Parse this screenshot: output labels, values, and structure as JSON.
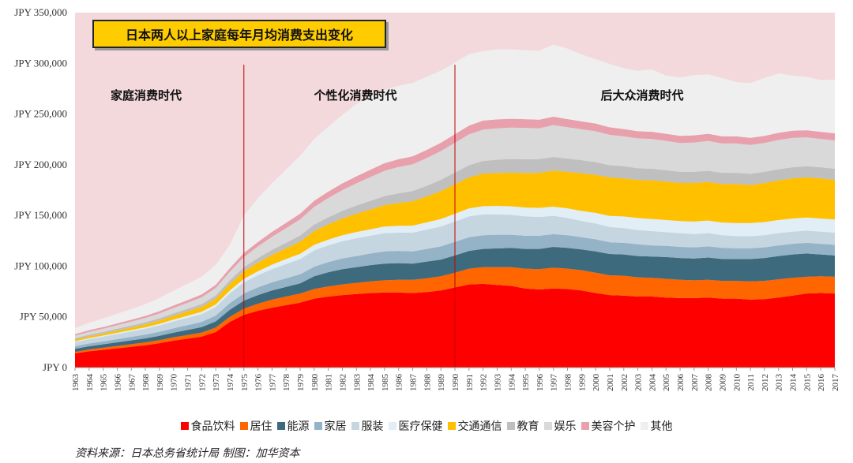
{
  "chart_data": {
    "type": "area",
    "stacked": true,
    "title": "日本两人以上家庭每年月均消费支出变化",
    "xlabel": "",
    "ylabel": "",
    "ylim": [
      0,
      350000
    ],
    "ytick_values": [
      0,
      50000,
      100000,
      150000,
      200000,
      250000,
      300000,
      350000
    ],
    "ytick_labels": [
      "JPY 0",
      "JPY 50,000",
      "JPY 100,000",
      "JPY 150,000",
      "JPY 200,000",
      "JPY 250,000",
      "JPY 300,000",
      "JPY 350,000"
    ],
    "x": [
      "1963",
      "1964",
      "1965",
      "1966",
      "1967",
      "1968",
      "1969",
      "1970",
      "1971",
      "1972",
      "1973",
      "1974",
      "1975",
      "1976",
      "1977",
      "1978",
      "1979",
      "1980",
      "1981",
      "1982",
      "1983",
      "1984",
      "1985",
      "1986",
      "1987",
      "1988",
      "1989",
      "1990",
      "1991",
      "1992",
      "1993",
      "1994",
      "1995",
      "1996",
      "1997",
      "1998",
      "1999",
      "2000",
      "2001",
      "2002",
      "2003",
      "2004",
      "2005",
      "2006",
      "2007",
      "2008",
      "2009",
      "2010",
      "2011",
      "2012",
      "2013",
      "2014",
      "2015",
      "2016",
      "2017"
    ],
    "series": [
      {
        "name": "食品饮料",
        "color": "#ff0000",
        "values": [
          14000,
          16000,
          17500,
          19000,
          20500,
          22000,
          24000,
          26500,
          28500,
          30500,
          35000,
          45000,
          52000,
          56000,
          59000,
          61500,
          64000,
          68000,
          70000,
          71500,
          72500,
          73500,
          74000,
          74000,
          73500,
          74500,
          76000,
          79000,
          82000,
          82500,
          81500,
          80500,
          78000,
          77000,
          78000,
          77500,
          76000,
          73500,
          71500,
          71000,
          70000,
          70000,
          69000,
          68500,
          68500,
          69000,
          68000,
          68000,
          67000,
          67500,
          69000,
          71000,
          73000,
          73500,
          73000
        ]
      },
      {
        "name": "居住",
        "color": "#ff6600",
        "values": [
          1500,
          1800,
          2000,
          2300,
          2500,
          2800,
          3000,
          3300,
          3600,
          4000,
          4500,
          5000,
          6000,
          7000,
          8000,
          8500,
          9000,
          9500,
          10000,
          10500,
          11000,
          11500,
          12000,
          12500,
          13000,
          13500,
          14000,
          14500,
          15500,
          16500,
          17500,
          18500,
          19500,
          20000,
          20500,
          20000,
          20000,
          20000,
          19500,
          19500,
          19000,
          18500,
          18500,
          18000,
          17500,
          17500,
          17500,
          17500,
          18000,
          18000,
          18000,
          17500,
          16500,
          16500,
          16500
        ]
      },
      {
        "name": "能源",
        "color": "#3d6b7d",
        "values": [
          3000,
          3200,
          3400,
          3600,
          3800,
          4000,
          4300,
          4600,
          5000,
          5400,
          6000,
          7000,
          8000,
          8500,
          9000,
          9500,
          10000,
          12500,
          14000,
          15000,
          15500,
          16000,
          16500,
          16500,
          16000,
          16500,
          16500,
          17000,
          17500,
          18000,
          18500,
          19000,
          19500,
          20000,
          20500,
          20500,
          20500,
          21000,
          21000,
          21000,
          21000,
          21000,
          21500,
          21500,
          21500,
          22000,
          21500,
          21500,
          22000,
          22500,
          23000,
          23000,
          23000,
          21500,
          21000
        ]
      },
      {
        "name": "家居",
        "color": "#95b3c7",
        "values": [
          2500,
          2700,
          2900,
          3100,
          3400,
          3700,
          4000,
          4300,
          4700,
          5100,
          5700,
          6500,
          7000,
          7500,
          8000,
          8500,
          9000,
          9500,
          10000,
          10500,
          11000,
          11500,
          12000,
          12000,
          12000,
          12500,
          13000,
          13500,
          13500,
          13500,
          13500,
          13000,
          13000,
          13000,
          12500,
          12500,
          12000,
          12000,
          11500,
          11500,
          11500,
          11000,
          11000,
          11000,
          11000,
          11000,
          11000,
          10500,
          10500,
          10500,
          10500,
          10500,
          10500,
          10500,
          10500
        ]
      },
      {
        "name": "服装",
        "color": "#c5d6e0",
        "values": [
          4000,
          4300,
          4600,
          5000,
          5400,
          5800,
          6200,
          6700,
          7200,
          7700,
          8500,
          9500,
          11000,
          12000,
          13000,
          14000,
          15000,
          16000,
          16500,
          17000,
          17500,
          17500,
          18000,
          18000,
          18500,
          19000,
          19500,
          20000,
          20500,
          20500,
          20000,
          19500,
          19000,
          18500,
          18000,
          17000,
          16000,
          15500,
          15000,
          14500,
          14000,
          14000,
          13500,
          13500,
          13000,
          13000,
          12500,
          12000,
          12000,
          12000,
          12000,
          12000,
          12000,
          12000,
          12000
        ]
      },
      {
        "name": "医疗保健",
        "color": "#e1eef5",
        "values": [
          1000,
          1100,
          1200,
          1300,
          1400,
          1500,
          1700,
          1900,
          2100,
          2300,
          2600,
          3000,
          3500,
          4000,
          4500,
          5000,
          5200,
          5500,
          5700,
          6000,
          6200,
          6400,
          6600,
          6800,
          7000,
          7200,
          7500,
          7700,
          8000,
          8200,
          8400,
          8600,
          8800,
          9000,
          9200,
          9500,
          10000,
          10500,
          11000,
          11500,
          12000,
          12000,
          12000,
          12000,
          12500,
          12500,
          12500,
          13000,
          13000,
          13000,
          13000,
          13000,
          13000,
          13000,
          13000
        ]
      },
      {
        "name": "交通通信",
        "color": "#ffc000",
        "values": [
          1500,
          1700,
          1900,
          2200,
          2500,
          2800,
          3200,
          3700,
          4200,
          4800,
          5600,
          6500,
          7500,
          8500,
          9500,
          10500,
          12000,
          13500,
          15000,
          16500,
          18000,
          19500,
          21000,
          22500,
          24000,
          25500,
          27500,
          29000,
          30500,
          32000,
          32500,
          33000,
          34000,
          34500,
          35500,
          36000,
          37000,
          37500,
          38000,
          37500,
          37500,
          38000,
          38000,
          37500,
          38000,
          38000,
          38000,
          38500,
          37500,
          38500,
          39000,
          39500,
          39500,
          39500,
          39000
        ]
      },
      {
        "name": "教育",
        "color": "#bfbfbf",
        "values": [
          1500,
          1600,
          1700,
          1800,
          1900,
          2000,
          2200,
          2400,
          2600,
          2800,
          3100,
          3500,
          4000,
          4500,
          5000,
          5500,
          6000,
          6500,
          7000,
          7500,
          8000,
          8500,
          9000,
          9500,
          10000,
          10500,
          11000,
          11500,
          12000,
          12500,
          13000,
          13500,
          13500,
          13500,
          13500,
          13000,
          13000,
          12500,
          12000,
          12000,
          11500,
          11500,
          11000,
          11000,
          11000,
          11000,
          11000,
          11000,
          11000,
          11000,
          11000,
          11000,
          11000,
          11000,
          11000
        ]
      },
      {
        "name": "娱乐",
        "color": "#d9d9d9",
        "values": [
          2500,
          2800,
          3100,
          3500,
          3900,
          4300,
          4800,
          5400,
          6000,
          6700,
          7500,
          8500,
          10000,
          11500,
          13000,
          14500,
          16000,
          17500,
          19000,
          20500,
          22000,
          23500,
          25000,
          26000,
          26500,
          27500,
          28500,
          29500,
          30500,
          31000,
          31000,
          31000,
          31000,
          30500,
          31500,
          31000,
          30500,
          30500,
          30000,
          29500,
          29500,
          29500,
          29000,
          28500,
          29000,
          29500,
          29000,
          29000,
          28500,
          28500,
          29000,
          29000,
          28500,
          28000,
          28000
        ]
      },
      {
        "name": "美容个护",
        "color": "#e8a0ad",
        "values": [
          1500,
          1600,
          1700,
          1800,
          1900,
          2000,
          2200,
          2400,
          2600,
          2800,
          3100,
          3500,
          4000,
          4400,
          4800,
          5200,
          5600,
          6000,
          6300,
          6600,
          6900,
          7200,
          7400,
          7600,
          7800,
          8000,
          8200,
          8400,
          8600,
          8800,
          8800,
          8700,
          8600,
          8400,
          8200,
          8000,
          7800,
          7600,
          7400,
          7200,
          7000,
          7000,
          7000,
          7000,
          7000,
          7000,
          7000,
          7000,
          7000,
          7000,
          7000,
          7000,
          7000,
          7000,
          7000
        ]
      },
      {
        "name": "其他",
        "color": "#efefef",
        "values": [
          6000,
          7300,
          8500,
          9500,
          10500,
          11700,
          13000,
          14500,
          16000,
          17500,
          19500,
          23000,
          37000,
          43000,
          48000,
          52500,
          57000,
          61000,
          64000,
          67500,
          71500,
          72500,
          72500,
          72500,
          72500,
          72000,
          71000,
          70500,
          70500,
          68500,
          69000,
          68500,
          68000,
          68000,
          71000,
          69500,
          66000,
          63500,
          62500,
          60000,
          59500,
          61500,
          57500,
          57500,
          59500,
          58500,
          57500,
          53500,
          54000,
          57000,
          58500,
          54500,
          52500,
          51000,
          53000
        ]
      }
    ],
    "era_labels": [
      "家庭消费时代",
      "个性化消费时代",
      "后大众消费时代"
    ],
    "era_dividers": [
      "1975",
      "1990"
    ]
  },
  "colors": {
    "background_upper": "#f3d9dc",
    "axis": "#999999",
    "divider": "#c00000",
    "title_box": "#ffcc00"
  },
  "source_text": "资料来源：日本总务省统计局  制图：加华资本"
}
